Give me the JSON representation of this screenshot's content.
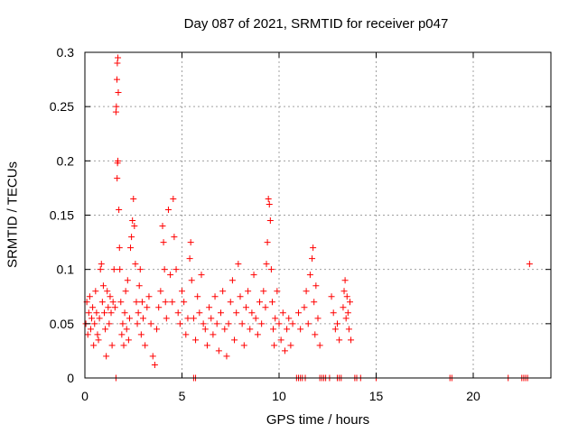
{
  "chart_data": {
    "type": "scatter",
    "title": "Day 087 of 2021, SRMTID for receiver p047",
    "xlabel": "GPS time / hours",
    "ylabel": "SRMTID / TECUs",
    "xlim": [
      0,
      24
    ],
    "ylim": [
      0,
      0.3
    ],
    "xticks": [
      0,
      5,
      10,
      15,
      20
    ],
    "xtick_labels": [
      "0",
      "5",
      "10",
      "15",
      "20"
    ],
    "yticks": [
      0,
      0.05,
      0.1,
      0.15,
      0.2,
      0.25,
      0.3
    ],
    "ytick_labels": [
      "0",
      "0.05",
      "0.1",
      "0.15",
      "0.2",
      "0.25",
      "0.3"
    ],
    "grid": true,
    "marker": "+",
    "series": [
      {
        "name": "SRMTID",
        "color": "#ff0000",
        "points": [
          [
            0.05,
            0.05
          ],
          [
            0.1,
            0.07
          ],
          [
            0.15,
            0.04
          ],
          [
            0.2,
            0.06
          ],
          [
            0.25,
            0.075
          ],
          [
            0.3,
            0.045
          ],
          [
            0.35,
            0.055
          ],
          [
            0.4,
            0.065
          ],
          [
            0.45,
            0.03
          ],
          [
            0.5,
            0.05
          ],
          [
            0.55,
            0.08
          ],
          [
            0.6,
            0.06
          ],
          [
            0.65,
            0.04
          ],
          [
            0.7,
            0.035
          ],
          [
            0.75,
            0.055
          ],
          [
            0.8,
            0.1
          ],
          [
            0.85,
            0.105
          ],
          [
            0.9,
            0.07
          ],
          [
            0.95,
            0.085
          ],
          [
            1.0,
            0.06
          ],
          [
            1.05,
            0.045
          ],
          [
            1.1,
            0.02
          ],
          [
            1.15,
            0.08
          ],
          [
            1.2,
            0.065
          ],
          [
            1.25,
            0.05
          ],
          [
            1.3,
            0.075
          ],
          [
            1.35,
            0.06
          ],
          [
            1.4,
            0.03
          ],
          [
            1.45,
            0.07
          ],
          [
            1.5,
            0.1
          ],
          [
            1.55,
            0.065
          ],
          [
            1.6,
            0.245
          ],
          [
            1.62,
            0.25
          ],
          [
            1.65,
            0.275
          ],
          [
            1.67,
            0.29
          ],
          [
            1.7,
            0.295
          ],
          [
            1.72,
            0.263
          ],
          [
            1.68,
            0.198
          ],
          [
            1.7,
            0.2
          ],
          [
            1.66,
            0.184
          ],
          [
            1.75,
            0.155
          ],
          [
            1.78,
            0.12
          ],
          [
            1.8,
            0.1
          ],
          [
            1.85,
            0.07
          ],
          [
            1.9,
            0.04
          ],
          [
            1.95,
            0.05
          ],
          [
            2.0,
            0.03
          ],
          [
            2.05,
            0.06
          ],
          [
            2.1,
            0.08
          ],
          [
            2.15,
            0.045
          ],
          [
            2.2,
            0.09
          ],
          [
            2.25,
            0.035
          ],
          [
            2.3,
            0.055
          ],
          [
            2.35,
            0.12
          ],
          [
            2.4,
            0.13
          ],
          [
            2.45,
            0.145
          ],
          [
            2.5,
            0.165
          ],
          [
            2.55,
            0.14
          ],
          [
            2.6,
            0.105
          ],
          [
            2.65,
            0.07
          ],
          [
            2.7,
            0.05
          ],
          [
            2.75,
            0.06
          ],
          [
            2.8,
            0.085
          ],
          [
            2.85,
            0.1
          ],
          [
            2.9,
            0.04
          ],
          [
            2.95,
            0.07
          ],
          [
            3.0,
            0.055
          ],
          [
            3.1,
            0.03
          ],
          [
            3.2,
            0.065
          ],
          [
            3.3,
            0.075
          ],
          [
            3.4,
            0.05
          ],
          [
            3.5,
            0.02
          ],
          [
            3.6,
            0.012
          ],
          [
            3.7,
            0.045
          ],
          [
            3.8,
            0.065
          ],
          [
            3.9,
            0.08
          ],
          [
            4.0,
            0.14
          ],
          [
            4.05,
            0.125
          ],
          [
            4.1,
            0.1
          ],
          [
            4.15,
            0.07
          ],
          [
            4.2,
            0.055
          ],
          [
            4.3,
            0.155
          ],
          [
            4.4,
            0.095
          ],
          [
            4.5,
            0.07
          ],
          [
            4.55,
            0.165
          ],
          [
            4.6,
            0.13
          ],
          [
            4.7,
            0.1
          ],
          [
            4.8,
            0.06
          ],
          [
            4.9,
            0.05
          ],
          [
            5.0,
            0.08
          ],
          [
            5.1,
            0.07
          ],
          [
            5.2,
            0.04
          ],
          [
            5.3,
            0.055
          ],
          [
            5.4,
            0.11
          ],
          [
            5.45,
            0.125
          ],
          [
            5.5,
            0.09
          ],
          [
            5.6,
            0.055
          ],
          [
            5.7,
            0.035
          ],
          [
            5.8,
            0.075
          ],
          [
            5.9,
            0.06
          ],
          [
            6.0,
            0.095
          ],
          [
            6.1,
            0.05
          ],
          [
            6.2,
            0.045
          ],
          [
            6.3,
            0.03
          ],
          [
            6.4,
            0.065
          ],
          [
            6.5,
            0.055
          ],
          [
            6.6,
            0.04
          ],
          [
            6.7,
            0.075
          ],
          [
            6.8,
            0.05
          ],
          [
            6.9,
            0.025
          ],
          [
            7.0,
            0.06
          ],
          [
            7.1,
            0.08
          ],
          [
            7.2,
            0.045
          ],
          [
            7.3,
            0.02
          ],
          [
            7.4,
            0.05
          ],
          [
            7.5,
            0.07
          ],
          [
            7.6,
            0.09
          ],
          [
            7.7,
            0.035
          ],
          [
            7.8,
            0.06
          ],
          [
            7.9,
            0.105
          ],
          [
            8.0,
            0.075
          ],
          [
            8.1,
            0.05
          ],
          [
            8.2,
            0.03
          ],
          [
            8.3,
            0.065
          ],
          [
            8.4,
            0.08
          ],
          [
            8.5,
            0.045
          ],
          [
            8.6,
            0.06
          ],
          [
            8.7,
            0.095
          ],
          [
            8.8,
            0.055
          ],
          [
            8.9,
            0.04
          ],
          [
            9.0,
            0.07
          ],
          [
            9.1,
            0.05
          ],
          [
            9.2,
            0.08
          ],
          [
            9.3,
            0.065
          ],
          [
            9.35,
            0.105
          ],
          [
            9.4,
            0.125
          ],
          [
            9.45,
            0.165
          ],
          [
            9.5,
            0.16
          ],
          [
            9.55,
            0.145
          ],
          [
            9.6,
            0.1
          ],
          [
            9.65,
            0.07
          ],
          [
            9.7,
            0.045
          ],
          [
            9.75,
            0.03
          ],
          [
            9.8,
            0.055
          ],
          [
            9.9,
            0.08
          ],
          [
            10.0,
            0.05
          ],
          [
            10.1,
            0.035
          ],
          [
            10.2,
            0.06
          ],
          [
            10.3,
            0.025
          ],
          [
            10.4,
            0.045
          ],
          [
            10.5,
            0.055
          ],
          [
            10.6,
            0.03
          ],
          [
            10.7,
            0.05
          ],
          [
            11.0,
            0.06
          ],
          [
            11.1,
            0.045
          ],
          [
            11.3,
            0.065
          ],
          [
            11.4,
            0.08
          ],
          [
            11.5,
            0.05
          ],
          [
            11.6,
            0.095
          ],
          [
            11.7,
            0.11
          ],
          [
            11.75,
            0.12
          ],
          [
            11.8,
            0.07
          ],
          [
            11.85,
            0.04
          ],
          [
            11.9,
            0.085
          ],
          [
            12.0,
            0.055
          ],
          [
            12.1,
            0.03
          ],
          [
            12.7,
            0.075
          ],
          [
            12.8,
            0.06
          ],
          [
            12.9,
            0.045
          ],
          [
            13.0,
            0.05
          ],
          [
            13.1,
            0.035
          ],
          [
            13.3,
            0.065
          ],
          [
            13.35,
            0.08
          ],
          [
            13.4,
            0.09
          ],
          [
            13.45,
            0.055
          ],
          [
            13.5,
            0.075
          ],
          [
            13.55,
            0.06
          ],
          [
            13.6,
            0.045
          ],
          [
            13.65,
            0.07
          ],
          [
            13.7,
            0.035
          ],
          [
            10.9,
            0.0
          ],
          [
            11.0,
            0.0
          ],
          [
            11.1,
            0.0
          ],
          [
            11.2,
            0.0
          ],
          [
            11.35,
            0.0
          ],
          [
            12.1,
            0.0
          ],
          [
            12.2,
            0.0
          ],
          [
            12.3,
            0.0
          ],
          [
            12.4,
            0.0
          ],
          [
            12.6,
            0.0
          ],
          [
            13.0,
            0.0
          ],
          [
            13.1,
            0.0
          ],
          [
            13.2,
            0.0
          ],
          [
            13.9,
            0.0
          ],
          [
            14.0,
            0.0
          ],
          [
            14.2,
            0.0
          ],
          [
            15.0,
            0.0
          ],
          [
            1.6,
            0.0
          ],
          [
            5.6,
            0.0
          ],
          [
            5.7,
            0.0
          ],
          [
            18.8,
            0.0
          ],
          [
            18.9,
            0.0
          ],
          [
            21.8,
            0.0
          ],
          [
            22.5,
            0.0
          ],
          [
            22.6,
            0.0
          ],
          [
            22.7,
            0.0
          ],
          [
            22.8,
            0.0
          ],
          [
            22.9,
            0.105
          ]
        ]
      }
    ]
  }
}
